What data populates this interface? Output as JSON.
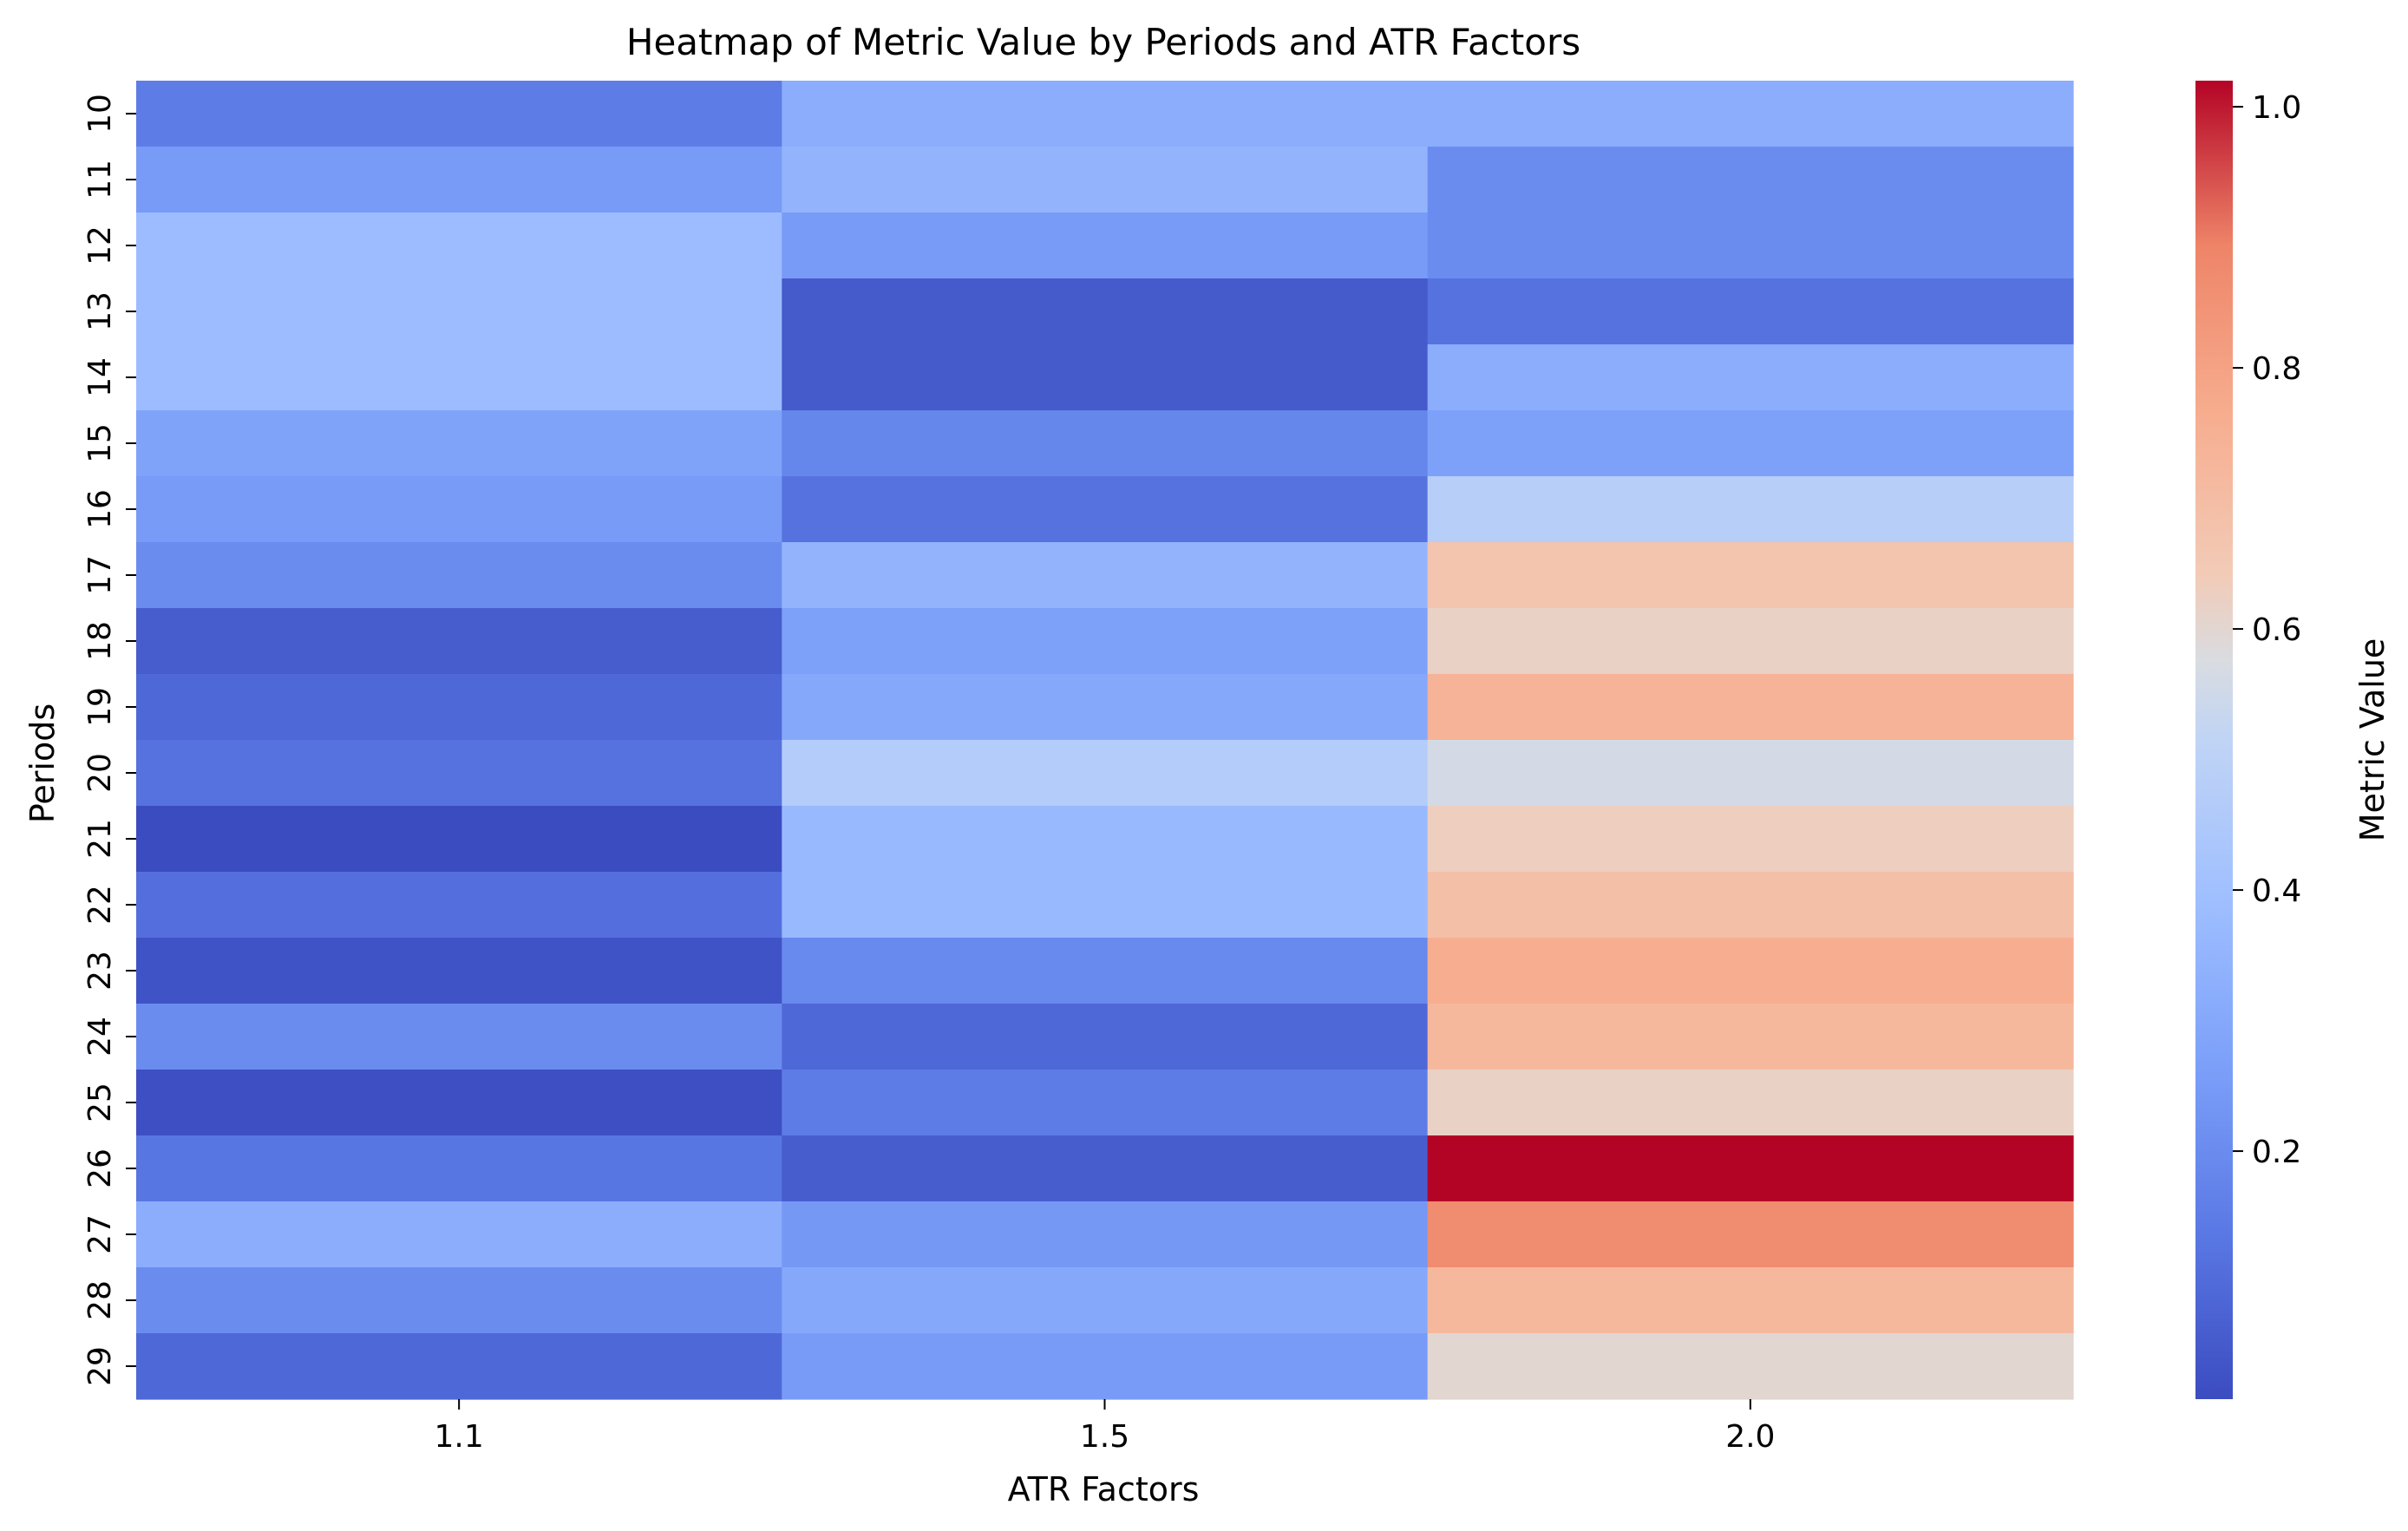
{
  "chart_data": {
    "type": "heatmap",
    "title": "Heatmap of Metric Value by Periods and ATR Factors",
    "xlabel": "ATR Factors",
    "ylabel": "Periods",
    "x_categories": [
      "1.1",
      "1.5",
      "2.0"
    ],
    "y_categories": [
      "10",
      "11",
      "12",
      "13",
      "14",
      "15",
      "16",
      "17",
      "18",
      "19",
      "20",
      "21",
      "22",
      "23",
      "24",
      "25",
      "26",
      "27",
      "28",
      "29"
    ],
    "values": [
      [
        0.15,
        0.32,
        0.32
      ],
      [
        0.25,
        0.35,
        0.2
      ],
      [
        0.38,
        0.25,
        0.2
      ],
      [
        0.38,
        0.05,
        0.12
      ],
      [
        0.38,
        0.05,
        0.32
      ],
      [
        0.28,
        0.18,
        0.27
      ],
      [
        0.25,
        0.12,
        0.48
      ],
      [
        0.2,
        0.35,
        0.67
      ],
      [
        0.06,
        0.27,
        0.62
      ],
      [
        0.09,
        0.3,
        0.74
      ],
      [
        0.12,
        0.47,
        0.56
      ],
      [
        0.01,
        0.37,
        0.63
      ],
      [
        0.11,
        0.37,
        0.69
      ],
      [
        0.03,
        0.19,
        0.76
      ],
      [
        0.2,
        0.09,
        0.72
      ],
      [
        0.02,
        0.15,
        0.62
      ],
      [
        0.13,
        0.06,
        1.02
      ],
      [
        0.32,
        0.24,
        0.87
      ],
      [
        0.2,
        0.3,
        0.72
      ],
      [
        0.09,
        0.25,
        0.6
      ]
    ],
    "colormap": "coolwarm",
    "vmin": 0.01,
    "vmax": 1.02,
    "colorbar": {
      "label": "Metric Value",
      "ticks": [
        "0.2",
        "0.4",
        "0.6",
        "0.8",
        "1.0"
      ]
    },
    "grid": false,
    "legend": "none"
  }
}
